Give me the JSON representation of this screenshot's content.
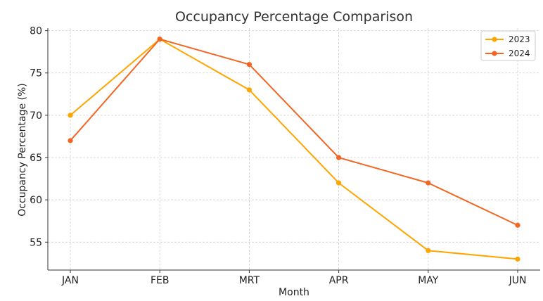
{
  "chart_data": {
    "type": "line",
    "title": "Occupancy Percentage Comparison",
    "xlabel": "Month",
    "ylabel": "Occupancy Percentage (%)",
    "categories": [
      "JAN",
      "FEB",
      "MRT",
      "APR",
      "MAY",
      "JUN"
    ],
    "ylim": [
      51.7,
      80.3
    ],
    "yticks": [
      55,
      60,
      65,
      70,
      75,
      80
    ],
    "grid": true,
    "legend_position": "top-right",
    "series": [
      {
        "name": "2023",
        "color": "#FFA500",
        "values": [
          70,
          79,
          73,
          62,
          54,
          53
        ]
      },
      {
        "name": "2024",
        "color": "#F26522",
        "values": [
          67,
          79,
          76,
          65,
          62,
          57
        ]
      }
    ]
  }
}
